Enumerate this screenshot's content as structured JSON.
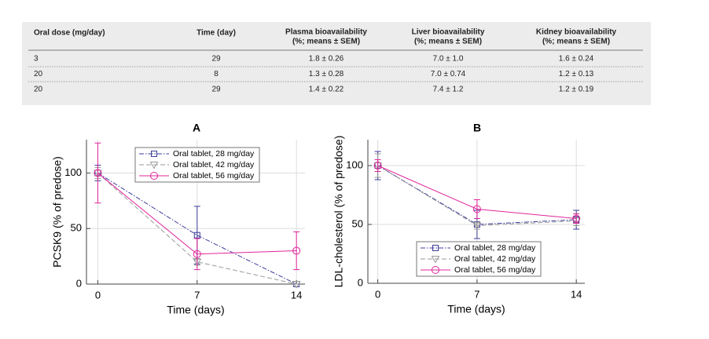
{
  "table": {
    "header": [
      [
        "Oral dose (mg/day)"
      ],
      [
        "Time (day)"
      ],
      [
        "Plasma bioavailability",
        "(%; means ± SEM)"
      ],
      [
        "Liver bioavailability",
        "(%; means ± SEM)"
      ],
      [
        "Kidney bioavailability",
        "(%; means ± SEM)"
      ]
    ],
    "rows": [
      [
        "3",
        "29",
        "1.8 ± 0.26",
        "7.0 ± 1.0",
        "1.6 ± 0.24"
      ],
      [
        "20",
        "8",
        "1.3 ± 0.28",
        "7.0 ± 0.74",
        "1.2 ± 0.13"
      ],
      [
        "20",
        "29",
        "1.4 ± 0.22",
        "7.4 ± 1.2",
        "1.2 ± 0.19"
      ]
    ]
  },
  "chart_data": [
    {
      "type": "line",
      "title": "A",
      "xlabel": "Time (days)",
      "ylabel": "PCSK9 (% of predose)",
      "x": [
        0,
        7,
        14
      ],
      "xlim": [
        -0.8,
        14.6
      ],
      "xticks": [
        0,
        7,
        14
      ],
      "ylim": [
        0,
        130
      ],
      "yticks": [
        0,
        50,
        100
      ],
      "grid": true,
      "legend": "upper right",
      "series": [
        {
          "name": "Oral tablet, 28 mg/day",
          "color": "#3c3c9c",
          "linestyle": "dashdot",
          "marker": "square",
          "values": [
            100,
            44,
            0
          ],
          "errors": [
            7,
            26,
            0
          ]
        },
        {
          "name": "Oral tablet, 42 mg/day",
          "color": "#9a9a9a",
          "linestyle": "dashed",
          "marker": "triangle-down",
          "values": [
            100,
            20,
            0
          ],
          "errors": [
            5,
            3,
            0
          ]
        },
        {
          "name": "Oral tablet, 56 mg/day",
          "color": "#e0259a",
          "linestyle": "solid",
          "marker": "circle",
          "values": [
            100,
            27,
            30
          ],
          "errors": [
            27,
            14,
            17
          ]
        }
      ]
    },
    {
      "type": "line",
      "title": "B",
      "xlabel": "Time (days)",
      "ylabel": "LDL-cholesterol (% of predose)",
      "x": [
        0,
        7,
        14
      ],
      "xlim": [
        -0.7,
        14.6
      ],
      "xticks": [
        0,
        7,
        14
      ],
      "ylim": [
        0,
        122
      ],
      "yticks": [
        0,
        50,
        100
      ],
      "grid": true,
      "legend": "lower right",
      "series": [
        {
          "name": "Oral tablet, 28 mg/day",
          "color": "#3c3c9c",
          "linestyle": "dashdot",
          "marker": "square",
          "values": [
            100,
            50,
            54
          ],
          "errors": [
            12,
            12,
            8
          ]
        },
        {
          "name": "Oral tablet, 42 mg/day",
          "color": "#9a9a9a",
          "linestyle": "dashed",
          "marker": "triangle-down",
          "values": [
            100,
            49,
            53
          ],
          "errors": [
            10,
            3,
            4
          ]
        },
        {
          "name": "Oral tablet, 56 mg/day",
          "color": "#e0259a",
          "linestyle": "solid",
          "marker": "circle",
          "values": [
            100,
            63,
            55
          ],
          "errors": [
            5,
            8,
            4
          ]
        }
      ]
    }
  ]
}
